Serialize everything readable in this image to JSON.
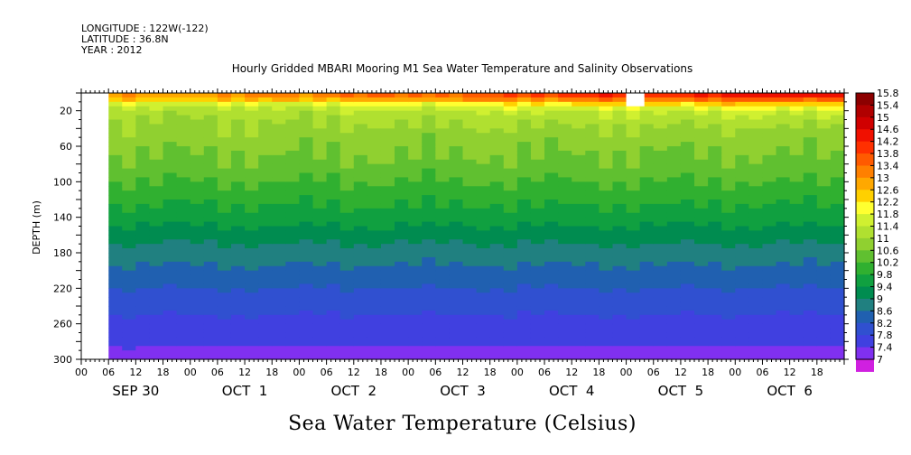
{
  "header": {
    "longitude": "LONGITUDE : 122W(-122)",
    "latitude": "LATITUDE : 36.8N",
    "year": "YEAR : 2012"
  },
  "chart_data": {
    "type": "heatmap",
    "title": "Hourly Gridded MBARI Mooring M1 Sea Water Temperature and Salinity Observations",
    "xlabel": "Sea Water Temperature (Celsius)",
    "ylabel": "DEPTH (m)",
    "x_range": [
      "2012-09-30 00:00",
      "2012-10-07 00:00"
    ],
    "data_start": "2012-09-30 06:00",
    "x_tick_labels": [
      "00",
      "06",
      "12",
      "18",
      "00",
      "06",
      "12",
      "18",
      "00",
      "06",
      "12",
      "18",
      "00",
      "06",
      "12",
      "18",
      "00",
      "06",
      "12",
      "18",
      "00",
      "06",
      "12",
      "18",
      "00",
      "06",
      "12",
      "18"
    ],
    "date_labels": [
      "SEP 30",
      "OCT  1",
      "OCT  2",
      "OCT  3",
      "OCT  4",
      "OCT  5",
      "OCT  6"
    ],
    "y_tick_labels": [
      "20",
      "60",
      "100",
      "140",
      "180",
      "220",
      "260",
      "300"
    ],
    "y_range": [
      0,
      300
    ],
    "y_inverted": true,
    "colorbar_levels": [
      "15.8",
      "15.4",
      "15",
      "14.6",
      "14.2",
      "13.8",
      "13.4",
      "13",
      "12.6",
      "12.2",
      "11.8",
      "11.4",
      "11",
      "10.6",
      "10.2",
      "9.8",
      "9.4",
      "9",
      "8.6",
      "8.2",
      "7.8",
      "7.4",
      "7"
    ],
    "colorbar_colors": [
      "#8c0000",
      "#b00000",
      "#d00000",
      "#f01000",
      "#ff3000",
      "#ff5a00",
      "#ff8000",
      "#ffa800",
      "#ffd000",
      "#ffff30",
      "#d0f030",
      "#b0e030",
      "#90d030",
      "#60c030",
      "#30b030",
      "#10a040",
      "#008c50",
      "#208080",
      "#2060b0",
      "#3050d0",
      "#4040e0",
      "#8030f0",
      "#d020e0"
    ],
    "profile": [
      {
        "depth": 5,
        "temp": 13.4
      },
      {
        "depth": 12,
        "temp": 12.2
      },
      {
        "depth": 20,
        "temp": 11.6
      },
      {
        "depth": 40,
        "temp": 11.3
      },
      {
        "depth": 60,
        "temp": 11.1
      },
      {
        "depth": 80,
        "temp": 10.9
      },
      {
        "depth": 100,
        "temp": 10.6
      },
      {
        "depth": 120,
        "temp": 10.3
      },
      {
        "depth": 140,
        "temp": 10.0
      },
      {
        "depth": 160,
        "temp": 9.6
      },
      {
        "depth": 180,
        "temp": 9.2
      },
      {
        "depth": 200,
        "temp": 8.9
      },
      {
        "depth": 220,
        "temp": 8.6
      },
      {
        "depth": 240,
        "temp": 8.3
      },
      {
        "depth": 260,
        "temp": 8.1
      },
      {
        "depth": 280,
        "temp": 7.9
      },
      {
        "depth": 300,
        "temp": 7.6
      }
    ],
    "surface_temp_by_day": [
      {
        "day": "SEP 30",
        "temp": 13.2
      },
      {
        "day": "OCT 1",
        "temp": 13.4
      },
      {
        "day": "OCT 2",
        "temp": 13.8
      },
      {
        "day": "OCT 3",
        "temp": 14.0
      },
      {
        "day": "OCT 4",
        "temp": 14.6
      },
      {
        "day": "OCT 5",
        "temp": 14.8
      },
      {
        "day": "OCT 6",
        "temp": 15.2
      }
    ],
    "missing_data": [
      {
        "from": "2012-09-30 00:00",
        "to": "2012-09-30 06:00",
        "depth_from": 0,
        "depth_to": 300
      },
      {
        "from": "2012-10-05 00:00",
        "to": "2012-10-05 04:00",
        "depth_from": 0,
        "depth_to": 15
      }
    ]
  }
}
